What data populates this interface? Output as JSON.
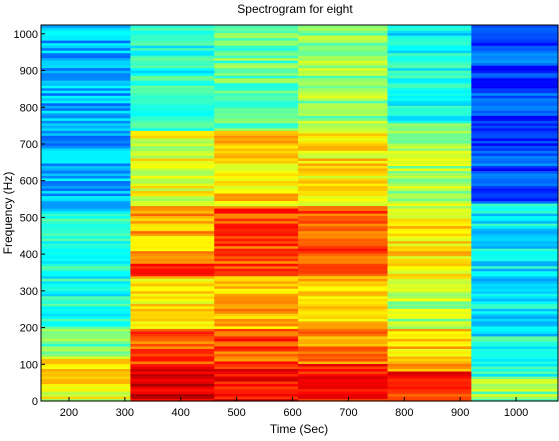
{
  "chart_data": {
    "type": "heatmap",
    "title": "Spectrogram for eight",
    "xlabel": "Time (Sec)",
    "ylabel": "Frequency (Hz)",
    "x_ticks": [
      200,
      300,
      400,
      500,
      600,
      700,
      800,
      900,
      1000
    ],
    "y_ticks": [
      0,
      100,
      200,
      300,
      400,
      500,
      600,
      700,
      800,
      900,
      1000
    ],
    "xlim": [
      150,
      1075
    ],
    "ylim": [
      0,
      1024
    ],
    "colormap": "jet",
    "color_range": [
      0,
      1
    ],
    "time_segments": [
      {
        "x0": 150,
        "x1": 310,
        "bands": [
          {
            "f0": 0,
            "f1": 40,
            "level": 0.6
          },
          {
            "f0": 40,
            "f1": 120,
            "level": 0.66
          },
          {
            "f0": 120,
            "f1": 200,
            "level": 0.48
          },
          {
            "f0": 200,
            "f1": 520,
            "level": 0.4
          },
          {
            "f0": 520,
            "f1": 1024,
            "level": 0.3
          }
        ]
      },
      {
        "x0": 310,
        "x1": 460,
        "bands": [
          {
            "f0": 0,
            "f1": 100,
            "level": 0.9
          },
          {
            "f0": 100,
            "f1": 200,
            "level": 0.78
          },
          {
            "f0": 200,
            "f1": 340,
            "level": 0.66
          },
          {
            "f0": 340,
            "f1": 380,
            "level": 0.8
          },
          {
            "f0": 380,
            "f1": 530,
            "level": 0.7
          },
          {
            "f0": 530,
            "f1": 740,
            "level": 0.6
          },
          {
            "f0": 740,
            "f1": 1024,
            "level": 0.4
          }
        ]
      },
      {
        "x0": 460,
        "x1": 610,
        "bands": [
          {
            "f0": 0,
            "f1": 100,
            "level": 0.86
          },
          {
            "f0": 100,
            "f1": 200,
            "level": 0.8
          },
          {
            "f0": 200,
            "f1": 340,
            "level": 0.7
          },
          {
            "f0": 340,
            "f1": 530,
            "level": 0.8
          },
          {
            "f0": 530,
            "f1": 740,
            "level": 0.66
          },
          {
            "f0": 740,
            "f1": 1024,
            "level": 0.48
          }
        ]
      },
      {
        "x0": 610,
        "x1": 770,
        "bands": [
          {
            "f0": 0,
            "f1": 100,
            "level": 0.84
          },
          {
            "f0": 100,
            "f1": 200,
            "level": 0.75
          },
          {
            "f0": 200,
            "f1": 340,
            "level": 0.66
          },
          {
            "f0": 340,
            "f1": 530,
            "level": 0.8
          },
          {
            "f0": 530,
            "f1": 740,
            "level": 0.64
          },
          {
            "f0": 740,
            "f1": 1024,
            "level": 0.52
          }
        ]
      },
      {
        "x0": 770,
        "x1": 920,
        "bands": [
          {
            "f0": 0,
            "f1": 80,
            "level": 0.84
          },
          {
            "f0": 80,
            "f1": 200,
            "level": 0.68
          },
          {
            "f0": 200,
            "f1": 320,
            "level": 0.55
          },
          {
            "f0": 320,
            "f1": 520,
            "level": 0.64
          },
          {
            "f0": 520,
            "f1": 760,
            "level": 0.55
          },
          {
            "f0": 760,
            "f1": 1024,
            "level": 0.38
          }
        ]
      },
      {
        "x0": 920,
        "x1": 1075,
        "bands": [
          {
            "f0": 0,
            "f1": 60,
            "level": 0.52
          },
          {
            "f0": 60,
            "f1": 180,
            "level": 0.42
          },
          {
            "f0": 180,
            "f1": 540,
            "level": 0.36
          },
          {
            "f0": 540,
            "f1": 1024,
            "level": 0.2
          }
        ]
      }
    ],
    "grid": false,
    "legend": false
  }
}
